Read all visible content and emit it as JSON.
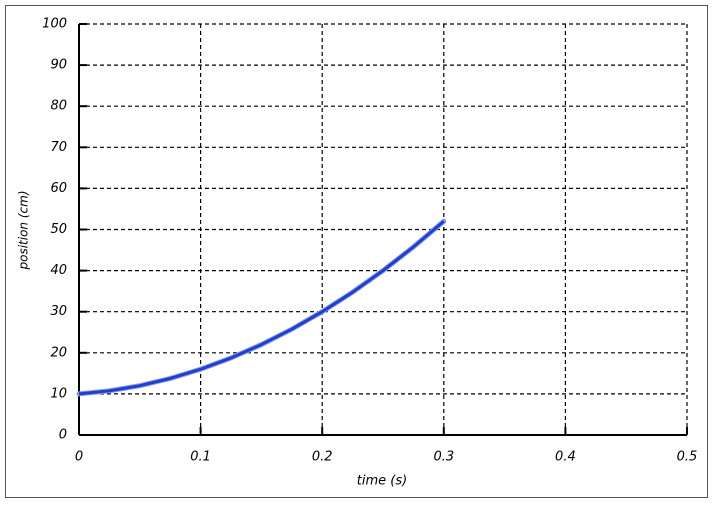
{
  "chart_data": {
    "type": "line",
    "x_label": "time (s)",
    "y_label": "position (cm)",
    "x": [
      0,
      0.025,
      0.05,
      0.075,
      0.1,
      0.125,
      0.15,
      0.175,
      0.2,
      0.225,
      0.25,
      0.275,
      0.3
    ],
    "series": [
      {
        "color": "#1f3fcf",
        "values": [
          10,
          10.75,
          12,
          13.75,
          16,
          18.75,
          22,
          25.75,
          30,
          34.75,
          40,
          45.75,
          52
        ]
      }
    ],
    "xlim": [
      0,
      0.5
    ],
    "xticks": [
      0,
      0.1,
      0.2,
      0.3,
      0.4,
      0.5
    ],
    "ylim": [
      0,
      100
    ],
    "yticks": [
      0,
      10,
      20,
      30,
      40,
      50,
      60,
      70,
      80,
      90,
      100
    ],
    "grid": true
  }
}
